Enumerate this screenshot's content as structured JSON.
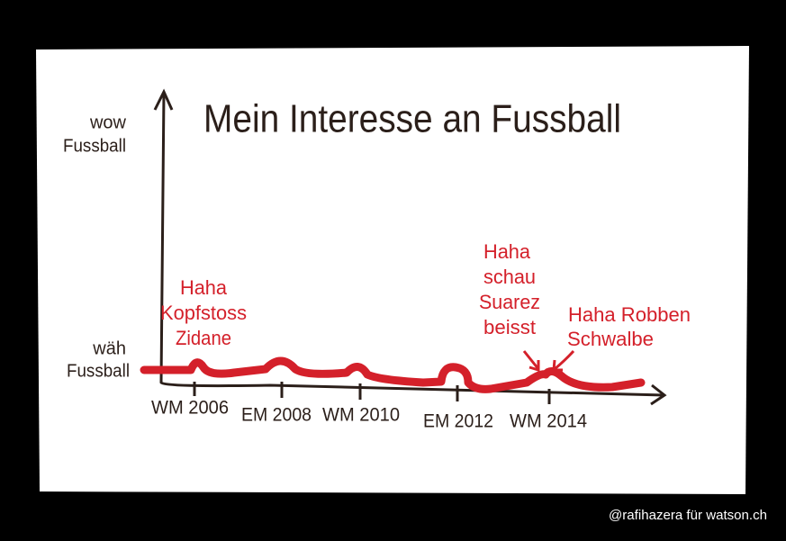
{
  "title": "Mein Interesse an Fussball",
  "y_axis": {
    "top_label": [
      "wow",
      "Fussball"
    ],
    "bottom_label": [
      "wäh",
      "Fussball"
    ]
  },
  "x_axis": {
    "labels": [
      "WM 2006",
      "EM 2008",
      "WM 2010",
      "EM 2012",
      "WM 2014"
    ]
  },
  "annotations": [
    {
      "lines": [
        "Haha",
        "Kopfstoss",
        "Zidane"
      ]
    },
    {
      "lines": [
        "Haha",
        "schau",
        "Suarez",
        "beisst"
      ]
    },
    {
      "lines": [
        "Haha Robben",
        "Schwalbe"
      ]
    }
  ],
  "credit": "@rafihazera für watson.ch"
}
